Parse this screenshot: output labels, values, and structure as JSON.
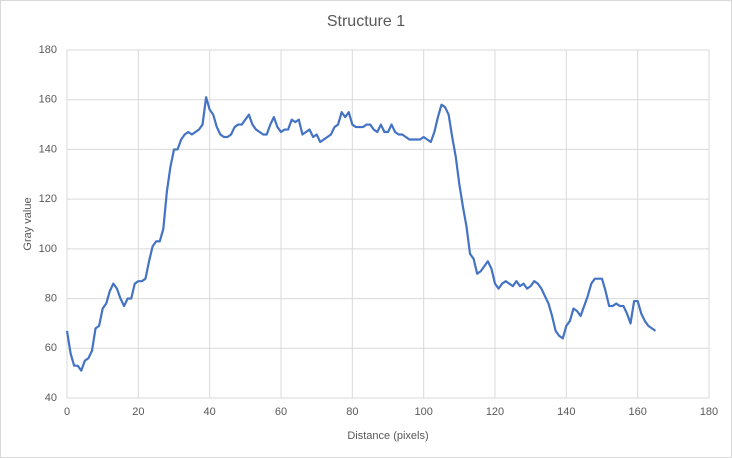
{
  "chart_data": {
    "type": "line",
    "title": "Structure 1",
    "xlabel": "Distance (pixels)",
    "ylabel": "Gray value",
    "x": [
      0,
      1,
      2,
      3,
      4,
      5,
      6,
      7,
      8,
      9,
      10,
      11,
      12,
      13,
      14,
      15,
      16,
      17,
      18,
      19,
      20,
      21,
      22,
      23,
      24,
      25,
      26,
      27,
      28,
      29,
      30,
      31,
      32,
      33,
      34,
      35,
      36,
      37,
      38,
      39,
      40,
      41,
      42,
      43,
      44,
      45,
      46,
      47,
      48,
      49,
      50,
      51,
      52,
      53,
      54,
      55,
      56,
      57,
      58,
      59,
      60,
      61,
      62,
      63,
      64,
      65,
      66,
      67,
      68,
      69,
      70,
      71,
      72,
      73,
      74,
      75,
      76,
      77,
      78,
      79,
      80,
      81,
      82,
      83,
      84,
      85,
      86,
      87,
      88,
      89,
      90,
      91,
      92,
      93,
      94,
      95,
      96,
      97,
      98,
      99,
      100,
      101,
      102,
      103,
      104,
      105,
      106,
      107,
      108,
      109,
      110,
      111,
      112,
      113,
      114,
      115,
      116,
      117,
      118,
      119,
      120,
      121,
      122,
      123,
      124,
      125,
      126,
      127,
      128,
      129,
      130,
      131,
      132,
      133,
      134,
      135,
      136,
      137,
      138,
      139,
      140,
      141,
      142,
      143,
      144,
      145,
      146,
      147,
      148,
      149,
      150,
      151,
      152,
      153,
      154,
      155,
      156,
      157,
      158,
      159,
      160,
      161,
      162,
      163,
      164,
      165
    ],
    "series": [
      {
        "name": "Gray value",
        "color": "#4472c4",
        "values": [
          67,
          58,
          53,
          53,
          51,
          55,
          56,
          59,
          68,
          69,
          76,
          78,
          83,
          86,
          84,
          80,
          77,
          80,
          80,
          86,
          87,
          87,
          88,
          95,
          101,
          103,
          103,
          108,
          123,
          133,
          140,
          140,
          144,
          146,
          147,
          146,
          147,
          148,
          150,
          161,
          156,
          154,
          149,
          146,
          145,
          145,
          146,
          149,
          150,
          150,
          152,
          154,
          150,
          148,
          147,
          146,
          146,
          150,
          153,
          149,
          147,
          148,
          148,
          152,
          151,
          152,
          146,
          147,
          148,
          145,
          146,
          143,
          144,
          145,
          146,
          149,
          150,
          155,
          153,
          155,
          150,
          149,
          149,
          149,
          150,
          150,
          148,
          147,
          150,
          147,
          147,
          150,
          147,
          146,
          146,
          145,
          144,
          144,
          144,
          144,
          145,
          144,
          143,
          147,
          153,
          158,
          157,
          154,
          145,
          137,
          126,
          117,
          109,
          98,
          96,
          90,
          91,
          93,
          95,
          92,
          86,
          84,
          86,
          87,
          86,
          85,
          87,
          85,
          86,
          84,
          85,
          87,
          86,
          84,
          81,
          78,
          73,
          67,
          65,
          64,
          69,
          71,
          76,
          75,
          73,
          77,
          81,
          86,
          88,
          88,
          88,
          83,
          77,
          77,
          78,
          77,
          77,
          74,
          70,
          79,
          79,
          74,
          71,
          69,
          68,
          67
        ]
      }
    ],
    "xlim": [
      0,
      180
    ],
    "xticks": [
      0,
      20,
      40,
      60,
      80,
      100,
      120,
      140,
      160,
      180
    ],
    "ylim": [
      40,
      180
    ],
    "yticks": [
      40,
      60,
      80,
      100,
      120,
      140,
      160,
      180
    ],
    "grid": true
  }
}
